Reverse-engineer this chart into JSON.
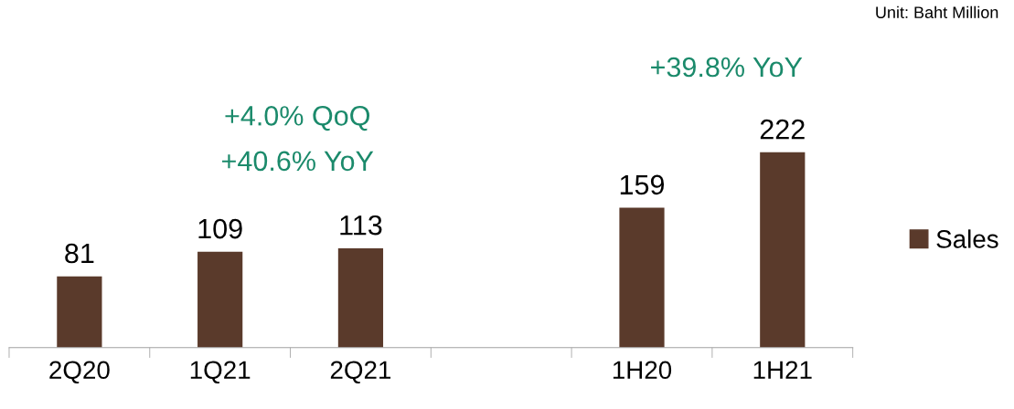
{
  "chart_data": {
    "type": "bar",
    "categories": [
      "2Q20",
      "1Q21",
      "2Q21",
      null,
      "1H20",
      "1H21"
    ],
    "series": [
      {
        "name": "Sales",
        "color": "#5a3a2b",
        "values": [
          81,
          109,
          113,
          null,
          159,
          222
        ]
      }
    ],
    "data_labels": true,
    "legend": "right",
    "grid": false,
    "annotations": [
      "+4.0% QoQ",
      "+40.6% YoY",
      "+39.8% YoY",
      "Unit: Baht Million"
    ]
  }
}
